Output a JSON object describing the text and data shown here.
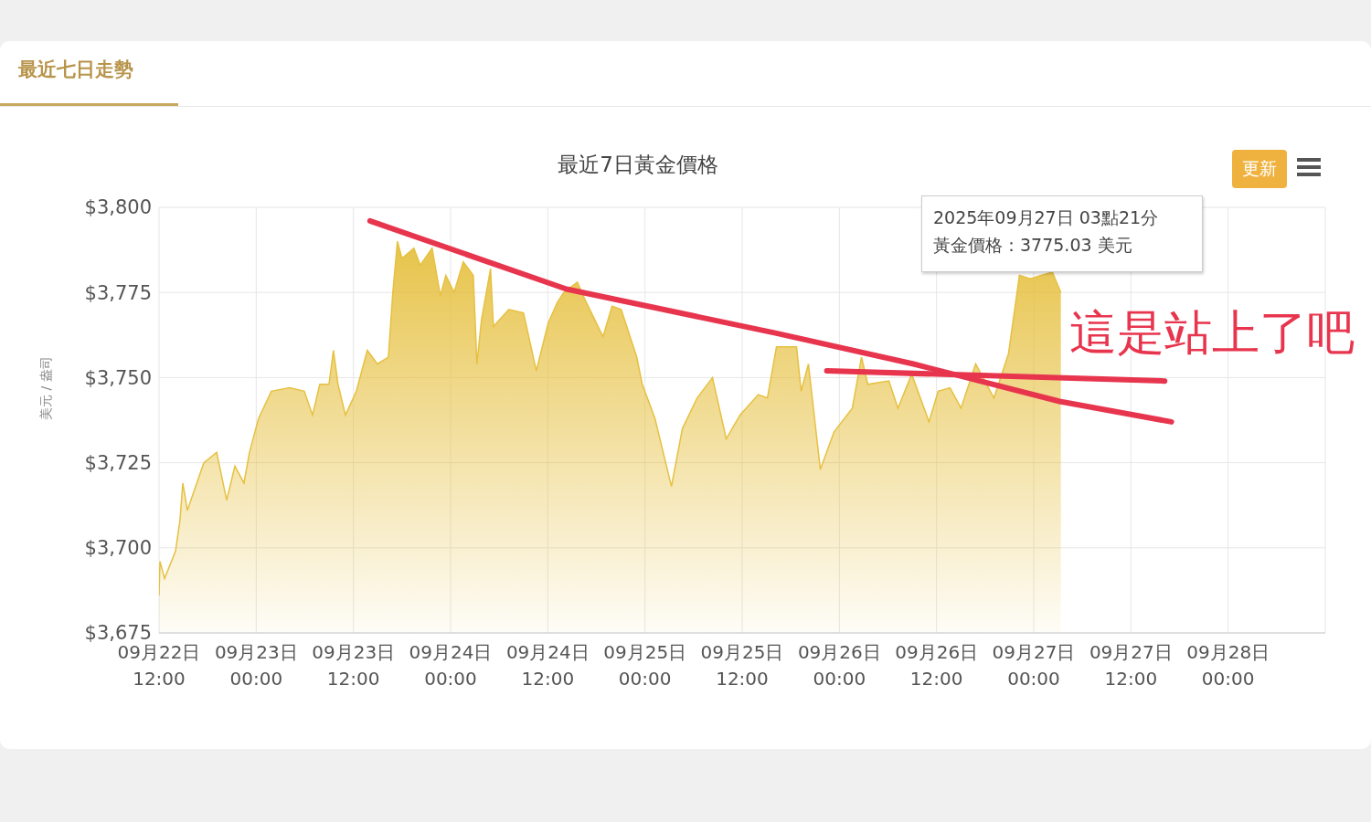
{
  "chart_data": {
    "type": "area",
    "title": "最近7日黃金價格",
    "ylabel": "美元 / 盎司",
    "annotations": [
      "最近七日走勢",
      "更新",
      "2025年09月27日 03點21分",
      "黃金價格：3775.03 美元",
      "這是站上了吧"
    ],
    "xlim": [
      "2025-09-22T12:00",
      "2025-09-28T12:00"
    ],
    "xticks": [
      {
        "value": "2025-09-22T12:00",
        "label": "09月22日\n12:00"
      },
      {
        "value": "2025-09-23T00:00",
        "label": "09月23日\n00:00"
      },
      {
        "value": "2025-09-23T12:00",
        "label": "09月23日\n12:00"
      },
      {
        "value": "2025-09-24T00:00",
        "label": "09月24日\n00:00"
      },
      {
        "value": "2025-09-24T12:00",
        "label": "09月24日\n12:00"
      },
      {
        "value": "2025-09-25T00:00",
        "label": "09月25日\n00:00"
      },
      {
        "value": "2025-09-25T12:00",
        "label": "09月25日\n12:00"
      },
      {
        "value": "2025-09-26T00:00",
        "label": "09月26日\n00:00"
      },
      {
        "value": "2025-09-26T12:00",
        "label": "09月26日\n12:00"
      },
      {
        "value": "2025-09-27T00:00",
        "label": "09月27日\n00:00"
      },
      {
        "value": "2025-09-27T12:00",
        "label": "09月27日\n12:00"
      },
      {
        "value": "2025-09-28T00:00",
        "label": "09月28日\n00:00"
      }
    ],
    "ylim": [
      3675,
      3800
    ],
    "yticks": [
      {
        "value": 3675,
        "label": "$3,675"
      },
      {
        "value": 3700,
        "label": "$3,700"
      },
      {
        "value": 3725,
        "label": "$3,725"
      },
      {
        "value": 3750,
        "label": "$3,750"
      },
      {
        "value": 3775,
        "label": "$3,775"
      },
      {
        "value": 3800,
        "label": "$3,800"
      }
    ],
    "grid": true,
    "marker": "none",
    "series": [
      {
        "color": "#e6c040",
        "x": [
          "2025-09-22T12:00",
          "2025-09-22T12:07",
          "2025-09-22T12:41",
          "2025-09-22T14:02",
          "2025-09-22T14:35",
          "2025-09-22T14:56",
          "2025-09-22T15:30",
          "2025-09-22T17:32",
          "2025-09-22T19:07",
          "2025-09-22T20:21",
          "2025-09-22T21:22",
          "2025-09-22T22:29",
          "2025-09-22T23:10",
          "2025-09-23T00:17",
          "2025-09-23T01:52",
          "2025-09-23T04:08",
          "2025-09-23T05:56",
          "2025-09-23T06:57",
          "2025-09-23T07:51",
          "2025-09-23T08:59",
          "2025-09-23T09:32",
          "2025-09-23T10:06",
          "2025-09-23T11:01",
          "2025-09-23T12:22",
          "2025-09-23T13:43",
          "2025-09-23T14:57",
          "2025-09-23T16:19",
          "2025-09-23T16:52",
          "2025-09-23T17:26",
          "2025-09-23T18:00",
          "2025-09-23T19:28",
          "2025-09-23T20:15",
          "2025-09-23T21:43",
          "2025-09-23T22:44",
          "2025-09-23T23:25",
          "2025-09-24T00:26",
          "2025-09-24T01:34",
          "2025-09-24T02:48",
          "2025-09-24T03:15",
          "2025-09-24T03:49",
          "2025-09-24T04:56",
          "2025-09-24T05:17",
          "2025-09-24T07:11",
          "2025-09-24T09:00",
          "2025-09-24T10:35",
          "2025-09-24T12:03",
          "2025-09-24T13:10",
          "2025-09-24T13:58",
          "2025-09-24T15:39",
          "2025-09-24T16:34",
          "2025-09-24T18:49",
          "2025-09-24T19:56",
          "2025-09-24T21:04",
          "2025-09-24T22:59",
          "2025-09-24T23:40",
          "2025-09-25T01:14",
          "2025-09-25T03:16",
          "2025-09-25T04:37",
          "2025-09-25T06:26",
          "2025-09-25T08:20",
          "2025-09-25T10:02",
          "2025-09-25T11:44",
          "2025-09-25T13:59",
          "2025-09-25T15:07",
          "2025-09-25T16:14",
          "2025-09-25T17:42",
          "2025-09-25T18:43",
          "2025-09-25T19:17",
          "2025-09-25T20:11",
          "2025-09-25T21:39",
          "2025-09-25T23:20",
          "2025-09-26T01:36",
          "2025-09-26T02:44",
          "2025-09-26T03:31",
          "2025-09-26T06:07",
          "2025-09-26T07:14",
          "2025-09-26T08:56",
          "2025-09-26T11:04",
          "2025-09-26T12:12",
          "2025-09-26T13:40",
          "2025-09-26T15:01",
          "2025-09-26T16:50",
          "2025-09-26T19:05",
          "2025-09-26T20:53",
          "2025-09-26T22:14",
          "2025-09-26T23:35",
          "2025-09-27T00:56",
          "2025-09-27T02:18",
          "2025-09-27T03:21"
        ],
        "values": [
          3686,
          3696,
          3691,
          3699,
          3708,
          3719,
          3711,
          3725,
          3728,
          3714,
          3724,
          3719,
          3728,
          3738,
          3746,
          3747,
          3746,
          3739,
          3748,
          3748,
          3758,
          3748,
          3739,
          3746,
          3758,
          3754,
          3756,
          3775,
          3790,
          3785,
          3788,
          3783,
          3788,
          3774,
          3780,
          3775,
          3784,
          3780,
          3754,
          3767,
          3782,
          3765,
          3770,
          3769,
          3752,
          3766,
          3772,
          3775,
          3778,
          3773,
          3762,
          3771,
          3770,
          3756,
          3748,
          3738,
          3718,
          3735,
          3744,
          3750,
          3732,
          3739,
          3745,
          3744,
          3759,
          3759,
          3759,
          3746,
          3754,
          3723,
          3734,
          3741,
          3756,
          3748,
          3749,
          3741,
          3751,
          3737,
          3746,
          3747,
          3741,
          3754,
          3744,
          3757,
          3780,
          3779,
          3780,
          3781,
          3775
        ]
      },
      {
        "type": "line",
        "color": "#e8354e",
        "x": [
          "2025-09-23T14:03",
          "2025-09-24T14:18",
          "2025-09-25T16:14",
          "2025-09-26T09:09",
          "2025-09-27T03:12",
          "2025-09-27T17:00"
        ],
        "values": [
          3796,
          3776,
          3763,
          3754,
          3743,
          3737
        ]
      },
      {
        "type": "line",
        "color": "#e8354e",
        "x": [
          "2025-09-25T22:27",
          "2025-09-27T16:10"
        ],
        "values": [
          3752,
          3749
        ]
      }
    ]
  }
}
